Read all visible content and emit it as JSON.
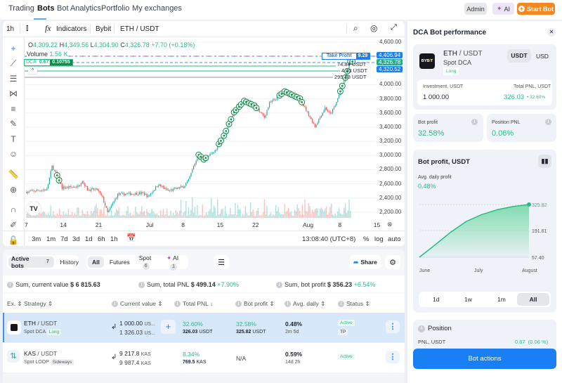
{
  "nav": {
    "items": [
      "Trading",
      "Bots",
      "Bot Analytics",
      "Portfolio",
      "My exchanges"
    ],
    "active": "Bots",
    "admin": "Admin",
    "ai": "AI",
    "start_bot": "Start Bot"
  },
  "colors": {
    "accent": "#1a7ff5",
    "orange": "#f7861c",
    "green": "#2bb987",
    "red": "#ef6b6b",
    "highlight_row": "#d8e8fb"
  },
  "chart_toolbar": {
    "interval": "1h",
    "indicators": "Indicators",
    "exchange": "Bybit",
    "pair": "ETH / USDT"
  },
  "left_tools": [
    "crosshair-icon",
    "trend-line-icon",
    "parallel-lines-icon",
    "pattern-icon",
    "fib-icon",
    "brush-icon",
    "text-icon",
    "emoji-icon",
    "ruler-icon",
    "zoom-in-icon",
    "magnet-icon",
    "lock-draw-icon",
    "unlock-icon"
  ],
  "ohlc": {
    "o_label": "O",
    "o": "4,309.22",
    "h_label": "H",
    "h": "4,349.56",
    "l_label": "L",
    "l": "4,304.90",
    "c_label": "C",
    "c": "4,326.78",
    "change": "+7.70 (+0.18%)"
  },
  "volume": {
    "label": "Volume",
    "value": "1.56 K"
  },
  "dca_label": {
    "name": "DCA",
    "qty": "0.67",
    "value": "0.10755"
  },
  "levels": {
    "take_profit": "Take Profit",
    "take_profit_qty": "9.29",
    "take_profit_price": "4,406.94",
    "current_price": "4,326.78",
    "avg_price": "4,320.52",
    "order1": "74.84 USDT",
    "order2": "4.03 USDT",
    "order3": "295.53 USDT"
  },
  "chart_data": {
    "type": "candlestick",
    "price_axis": [
      "4,600.00",
      "4,000.00",
      "3,800.00",
      "3,600.00",
      "3,400.00",
      "3,200.00",
      "3,000.00",
      "2,800.00",
      "2,600.00",
      "2,400.00",
      "2,200.00"
    ],
    "price_axis_values": [
      4600,
      4000,
      3800,
      3600,
      3400,
      3200,
      3000,
      2800,
      2600,
      2400,
      2200
    ],
    "time_axis": [
      "7",
      "14",
      "21",
      "Jul",
      "8",
      "15",
      "22",
      "Aug",
      "8",
      "15"
    ],
    "time_axis_dates": [
      "2024-06-07",
      "2024-06-14",
      "2024-06-21",
      "2024-07-01",
      "2024-07-08",
      "2024-07-15",
      "2024-07-22",
      "2024-08-01",
      "2024-08-08",
      "2024-08-15"
    ],
    "close_path": [
      [
        "2024-06-07",
        2487
      ],
      [
        "2024-06-11",
        2520
      ],
      [
        "2024-06-12",
        2845
      ],
      [
        "2024-06-13",
        2720
      ],
      [
        "2024-06-14",
        2545
      ],
      [
        "2024-06-17",
        2560
      ],
      [
        "2024-06-18",
        2645
      ],
      [
        "2024-06-19",
        2520
      ],
      [
        "2024-06-21",
        2515
      ],
      [
        "2024-06-22",
        2400
      ],
      [
        "2024-06-23",
        2190
      ],
      [
        "2024-06-25",
        2450
      ],
      [
        "2024-06-30",
        2470
      ],
      [
        "2024-07-01",
        2420
      ],
      [
        "2024-07-03",
        2590
      ],
      [
        "2024-07-05",
        2500
      ],
      [
        "2024-07-08",
        2560
      ],
      [
        "2024-07-09",
        2645
      ],
      [
        "2024-07-10",
        2845
      ],
      [
        "2024-07-11",
        3010
      ],
      [
        "2024-07-12",
        2945
      ],
      [
        "2024-07-14",
        3045
      ],
      [
        "2024-07-16",
        3280
      ],
      [
        "2024-07-18",
        3610
      ],
      [
        "2024-07-20",
        3770
      ],
      [
        "2024-07-22",
        3705
      ],
      [
        "2024-07-24",
        3540
      ],
      [
        "2024-07-25",
        3735
      ],
      [
        "2024-07-28",
        3905
      ],
      [
        "2024-07-31",
        3805
      ],
      [
        "2024-08-01",
        3675
      ],
      [
        "2024-08-03",
        3410
      ],
      [
        "2024-08-05",
        3675
      ],
      [
        "2024-08-06",
        3580
      ],
      [
        "2024-08-07",
        3705
      ],
      [
        "2024-08-08",
        3905
      ],
      [
        "2024-08-09",
        4100
      ],
      [
        "2024-08-10",
        4327
      ]
    ],
    "dca_order_dates": [
      "2024-06-13",
      "2024-07-11",
      "2024-07-12",
      "2024-07-15",
      "2024-07-16",
      "2024-07-17",
      "2024-07-18",
      "2024-07-19",
      "2024-07-20",
      "2024-07-21",
      "2024-07-22",
      "2024-07-27",
      "2024-07-28",
      "2024-07-29",
      "2024-07-30",
      "2024-07-31",
      "2024-08-08",
      "2024-08-09",
      "2024-08-10"
    ]
  },
  "chart_bottom": {
    "timeframes": [
      "3m",
      "1m",
      "7d",
      "3d",
      "1d",
      "6h",
      "1h"
    ],
    "clock": "13:08:40 (UTC+8)",
    "percent": "%",
    "log": "log",
    "auto": "auto"
  },
  "bots_panel": {
    "tabs": [
      {
        "label": "Active bots",
        "count": "7"
      },
      {
        "label": "History"
      }
    ],
    "filters": [
      {
        "label": "All"
      },
      {
        "label": "Futures"
      },
      {
        "label": "Spot",
        "count": "6"
      },
      {
        "label": "AI",
        "count": "1"
      }
    ],
    "share": "Share",
    "sums": [
      {
        "label": "Sum, current value",
        "value": "$ 6 815.63"
      },
      {
        "label": "Sum, total PNL",
        "value": "$ 499.14",
        "change": "+7.90%"
      },
      {
        "label": "Sum, bot profit",
        "value": "$ 356.23",
        "change": "+6.54%"
      }
    ],
    "columns": [
      "Ex.",
      "Strategy",
      "Current value",
      "Total PNL",
      "Bot profit",
      "Avg. daily",
      "Status"
    ],
    "rows": [
      {
        "base": "ETH",
        "quote": "/ USDT",
        "type": "Spot DCA",
        "side": "Long",
        "value1": "1 000.00",
        "value1_unit": "US...",
        "value2": "1 326.03",
        "value2_unit": "US...",
        "pnl_pct": "32.60%",
        "pnl_abs": "326.03",
        "pnl_unit": "USDT",
        "bp_pct": "32.58%",
        "bp_abs": "325.82",
        "bp_unit": "USDT",
        "avg": "0.48%",
        "age": "2m 5d",
        "status": "Active",
        "status2": "TP"
      },
      {
        "base": "KAS",
        "quote": "/ USDT",
        "type": "Spot LOOP",
        "side": "Sideways",
        "value1": "9 217.8",
        "value1_unit": "KAS",
        "value2": "9 987.4",
        "value2_unit": "KAS",
        "pnl_pct": "8.34%",
        "pnl_abs": "769.5",
        "pnl_unit": "KAS",
        "bp_pct": "N/A",
        "avg": "0.59%",
        "age": "14d 2h",
        "status": "Active"
      }
    ]
  },
  "perf": {
    "title": "DCA Bot performance",
    "exchange_logo": "BYBIT",
    "base": "ETH",
    "quote": "/ USDT",
    "type": "Spot DCA",
    "side": "Long",
    "currency_toggle": [
      "USDT",
      "USD"
    ],
    "currency_selected": "USDT",
    "investment_label": "Investment, USDT",
    "investment": "1 000.00",
    "total_pnl_label": "Total PNL, USDT",
    "total_pnl": "326.03",
    "total_pnl_pct": "32.60%",
    "bot_profit_label": "Bot profit",
    "bot_profit": "32.58%",
    "position_pnl_label": "Position PNL",
    "position_pnl": "0.06%",
    "chart_title": "Bot profit, USDT",
    "avg_daily_label": "Avg. daily profit",
    "avg_daily": "0.48%",
    "ranges": [
      "1d",
      "1w",
      "1m",
      "All"
    ],
    "range_selected": "All",
    "position_title": "Position",
    "pnl_usdt_label": "PNL, USDT",
    "pnl_usdt": "0.67  (0.06 %)",
    "bot_actions": "Bot actions",
    "profit_chart": {
      "type": "area",
      "x_labels": [
        "June",
        "July",
        "August"
      ],
      "y_labels": [
        "325.82",
        "191.61",
        "57.40"
      ],
      "ylim": [
        57.4,
        325.82
      ],
      "values": [
        57.4,
        120,
        185,
        240,
        275,
        300,
        316,
        325.82
      ]
    }
  }
}
